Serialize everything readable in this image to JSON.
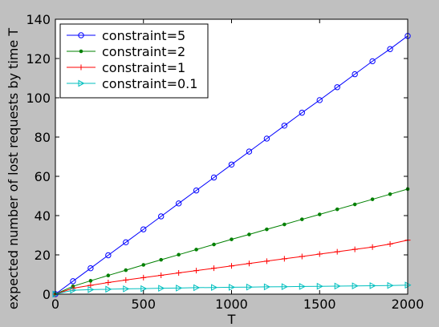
{
  "chart_data": {
    "type": "line",
    "xlabel": "T",
    "ylabel": "expected number of lost requests by time T",
    "xlim": [
      0,
      2000
    ],
    "ylim": [
      0,
      140
    ],
    "xticks": [
      "0",
      "500",
      "1000",
      "1500",
      "2000"
    ],
    "yticks": [
      "0",
      "20",
      "40",
      "60",
      "80",
      "100",
      "120",
      "140"
    ],
    "grid": false,
    "legend_position": "top-left",
    "x": [
      0,
      100,
      200,
      300,
      400,
      500,
      600,
      700,
      800,
      900,
      1000,
      1100,
      1200,
      1300,
      1400,
      1500,
      1600,
      1700,
      1800,
      1900,
      2000
    ],
    "series": [
      {
        "name": "constraint=5",
        "color": "#0000ff",
        "marker": "circle",
        "values": [
          0,
          6.6,
          13.2,
          19.8,
          26.4,
          33.0,
          39.6,
          46.2,
          52.8,
          59.4,
          66.0,
          72.6,
          79.2,
          85.8,
          92.4,
          98.8,
          105.4,
          112.0,
          118.6,
          124.8,
          131.5
        ]
      },
      {
        "name": "constraint=2",
        "color": "#008000",
        "marker": "dot",
        "values": [
          0,
          4.0,
          6.8,
          9.5,
          12.2,
          14.9,
          17.5,
          20.1,
          22.7,
          25.3,
          27.9,
          30.4,
          33.0,
          35.5,
          38.1,
          40.6,
          43.2,
          45.7,
          48.3,
          50.9,
          53.5
        ]
      },
      {
        "name": "constraint=1",
        "color": "#ff0000",
        "marker": "plus",
        "values": [
          0,
          3.0,
          4.5,
          5.9,
          7.2,
          8.4,
          9.6,
          10.8,
          12.0,
          13.2,
          14.4,
          15.6,
          16.8,
          18.0,
          19.2,
          20.4,
          21.6,
          22.8,
          24.0,
          25.5,
          27.5
        ]
      },
      {
        "name": "constraint=0.1",
        "color": "#00bfbf",
        "marker": "triangle-right",
        "values": [
          0,
          2.0,
          2.3,
          2.5,
          2.7,
          2.8,
          3.0,
          3.1,
          3.3,
          3.4,
          3.5,
          3.6,
          3.7,
          3.8,
          3.9,
          4.0,
          4.1,
          4.2,
          4.3,
          4.4,
          4.6
        ]
      }
    ]
  }
}
